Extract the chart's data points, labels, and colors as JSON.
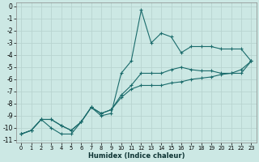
{
  "xlabel": "Humidex (Indice chaleur)",
  "bg_color": "#cce8e4",
  "grid_color": "#b8d4d0",
  "line_color": "#1a6b6b",
  "xlim": [
    -0.5,
    23.5
  ],
  "ylim": [
    -11.2,
    0.3
  ],
  "xticks": [
    0,
    1,
    2,
    3,
    4,
    5,
    6,
    7,
    8,
    9,
    10,
    11,
    12,
    13,
    14,
    15,
    16,
    17,
    18,
    19,
    20,
    21,
    22,
    23
  ],
  "yticks": [
    0,
    -1,
    -2,
    -3,
    -4,
    -5,
    -6,
    -7,
    -8,
    -9,
    -10,
    -11
  ],
  "line1_y": [
    -10.5,
    -10.2,
    -9.3,
    -10.0,
    -10.5,
    -10.5,
    -9.5,
    -8.3,
    -9.0,
    -8.8,
    -5.5,
    -4.5,
    -0.3,
    -3.0,
    -2.2,
    -2.5,
    -3.8,
    -3.3,
    -3.3,
    -3.3,
    -3.5,
    -3.5,
    -3.5,
    -4.5
  ],
  "line2_y": [
    -10.5,
    -10.2,
    -9.3,
    -9.3,
    -9.8,
    -10.2,
    -9.5,
    -8.3,
    -8.8,
    -8.5,
    -7.3,
    -6.5,
    -5.5,
    -5.5,
    -5.5,
    -5.2,
    -5.0,
    -5.2,
    -5.3,
    -5.3,
    -5.5,
    -5.5,
    -5.5,
    -4.5
  ],
  "line3_y": [
    -10.5,
    -10.2,
    -9.3,
    -9.3,
    -9.8,
    -10.2,
    -9.5,
    -8.3,
    -8.8,
    -8.5,
    -7.5,
    -6.8,
    -6.5,
    -6.5,
    -6.5,
    -6.3,
    -6.2,
    -6.0,
    -5.9,
    -5.8,
    -5.6,
    -5.5,
    -5.2,
    -4.5
  ]
}
